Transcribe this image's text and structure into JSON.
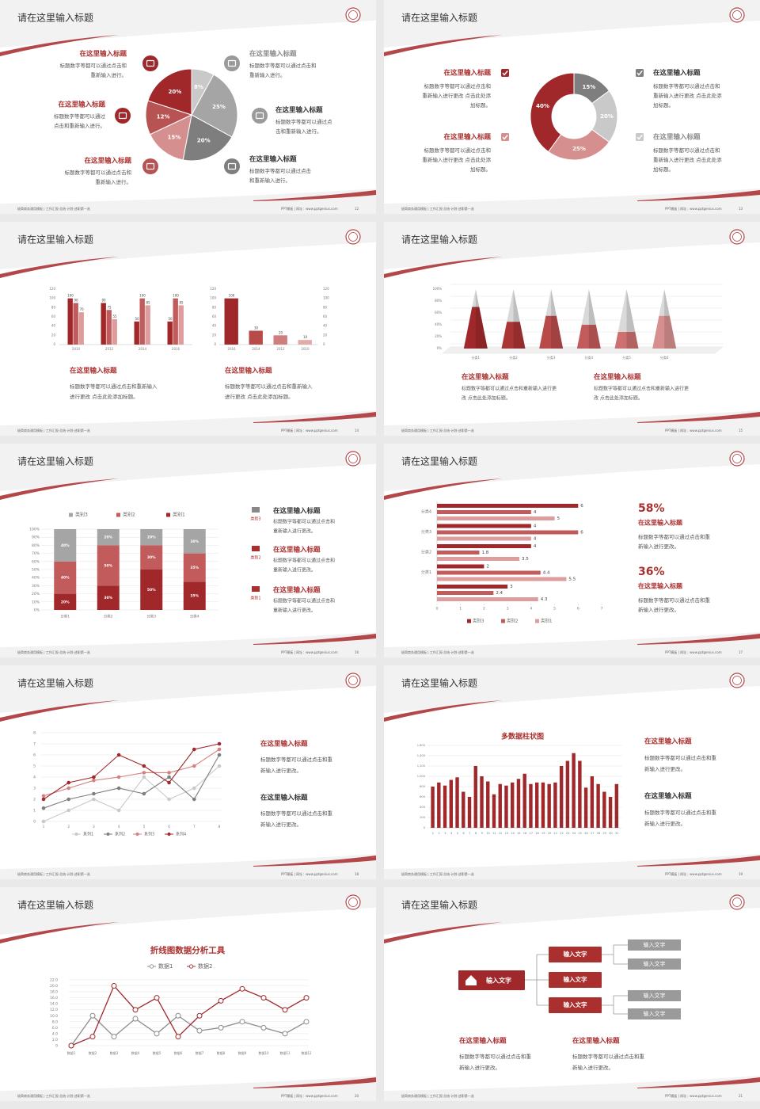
{
  "slides": [
    {
      "title": "请在这里输入标题",
      "footer_left": "极简商务通用模板 | 工作汇报·总结·计划·述职第一选",
      "footer_right": "PPT模板 | 网址：www.pptgenius.com",
      "page": 12,
      "chart": {
        "type": "pie",
        "values": [
          8,
          25,
          20,
          15,
          12,
          20
        ],
        "value_labels": [
          "8%",
          "25%",
          "20%",
          "15%",
          "12%",
          "20%"
        ],
        "colors": [
          "#c9c9c9",
          "#a5a5a5",
          "#7e7e7e",
          "#d68f8f",
          "#b85353",
          "#a0282b"
        ]
      },
      "items": [
        {
          "title": "在这里输入标题",
          "lines": [
            "标题数字等都可以通过点击和",
            "重新输入进行。"
          ]
        },
        {
          "title": "在这里输入标题",
          "lines": [
            "标题数字等都可以通过",
            "点击和重新输入进行。"
          ]
        },
        {
          "title": "在这里输入标题",
          "lines": [
            "标题数字等都可以通过点击和",
            "重新输入进行。"
          ]
        },
        {
          "title": "在这里输入标题",
          "lines": [
            "标题数字等都可以通过点击和",
            "重新输入进行。"
          ]
        },
        {
          "title": "在这里输入标题",
          "lines": [
            "标题数字等都可以通过点",
            "击和重新输入进行。"
          ]
        },
        {
          "title": "在这里输入标题",
          "lines": [
            "标题数字等都可以通过点击",
            "和重新输入进行。"
          ]
        }
      ]
    },
    {
      "title": "请在这里输入标题",
      "footer_left": "极简商务通用模板 | 工作汇报·总结·计划·述职第一选",
      "footer_right": "PPT模板 | 网址：www.pptgenius.com",
      "page": 13,
      "chart": {
        "type": "donut",
        "values": [
          15,
          20,
          25,
          40
        ],
        "value_labels": [
          "15%",
          "20%",
          "25%",
          "40%"
        ],
        "colors": [
          "#7e7e7e",
          "#c9c9c9",
          "#d68f8f",
          "#a0282b"
        ]
      },
      "items": [
        {
          "title": "在这里输入标题",
          "lines": [
            "标题数字等都可以通过点击和",
            "重新输入进行更改 点击此处添",
            "加标题。"
          ]
        },
        {
          "title": "在这里输入标题",
          "lines": [
            "标题数字等都可以通过点击和",
            "重新输入进行更改 点击此处添",
            "加标题。"
          ]
        },
        {
          "title": "在这里输入标题",
          "lines": [
            "标题数字等都可以通过点击和",
            "重新输入进行更改 点击此处添",
            "加标题。"
          ]
        },
        {
          "title": "在这里输入标题",
          "lines": [
            "标题数字等都可以通过点击和",
            "重新输入进行更改 点击此处添",
            "加标题。"
          ]
        }
      ]
    },
    {
      "title": "请在这里输入标题",
      "footer_left": "极简商务通用模板 | 工作汇报·总结·计划·述职第一选",
      "footer_right": "PPT模板 | 网址：www.pptgenius.com",
      "page": 14,
      "charts": [
        {
          "type": "bar",
          "categories": [
            "2010",
            "2012",
            "2014",
            "2016"
          ],
          "series": [
            {
              "color": "#a0282b",
              "values": [
                100,
                90,
                50,
                50
              ]
            },
            {
              "color": "#c25b5b",
              "values": [
                90,
                75,
                100,
                100
              ]
            },
            {
              "color": "#dd9d9d",
              "values": [
                70,
                55,
                85,
                85
              ]
            }
          ],
          "ylim": [
            0,
            120
          ],
          "yticks": [
            0,
            20,
            40,
            60,
            80,
            100,
            120
          ]
        },
        {
          "type": "bar",
          "categories": [
            "2016",
            "2014",
            "2012",
            "2010"
          ],
          "values": [
            100,
            30,
            20,
            10
          ],
          "colors": [
            "#a0282b",
            "#b84a4a",
            "#cf7d7d",
            "#e2aaaa"
          ],
          "ylim": [
            0,
            120
          ],
          "yticks": [
            0,
            20,
            40,
            60,
            80,
            100,
            120
          ],
          "y2lim": [
            0,
            120
          ],
          "y2ticks": [
            0,
            20,
            40,
            60,
            80,
            100,
            120
          ]
        }
      ],
      "items": [
        {
          "title": "在这里输入标题",
          "lines": [
            "标题数字等都可以通过点击和重新输入",
            "进行更改 点击此处添加标题。"
          ]
        },
        {
          "title": "在这里输入标题",
          "lines": [
            "标题数字等都可以通过点击和重新输入",
            "进行更改 点击此处添加标题。"
          ]
        }
      ]
    },
    {
      "title": "请在这里输入标题",
      "footer_left": "极简商务通用模板 | 工作汇报·总结·计划·述职第一选",
      "footer_right": "PPT模板 | 网址：www.pptgenius.com",
      "page": 15,
      "chart": {
        "type": "cone",
        "categories": [
          "分类1",
          "分类2",
          "分类3",
          "分类4",
          "分类5",
          "分类6"
        ],
        "values": [
          70,
          45,
          55,
          40,
          28,
          55
        ],
        "colors": [
          "#a0282b",
          "#a93535",
          "#b84a4a",
          "#c25b5b",
          "#cc7070",
          "#d68f8f"
        ],
        "top_color": "#d9d9d9",
        "ylim": [
          0,
          100
        ],
        "yticks": [
          {
            "value": 0,
            "label": "0%"
          },
          {
            "value": 20,
            "label": "20%"
          },
          {
            "value": 40,
            "label": "40%"
          },
          {
            "value": 60,
            "label": "60%"
          },
          {
            "value": 80,
            "label": "80%"
          },
          {
            "value": 100,
            "label": "100%"
          }
        ]
      },
      "items": [
        {
          "title": "在这里输入标题",
          "lines": [
            "标题数字等都可以通过点击和重新输入进行更",
            "改 点击此处添加标题。"
          ]
        },
        {
          "title": "在这里输入标题",
          "lines": [
            "标题数字等都可以通过点击和重新输入进行更",
            "改 点击此处添加标题。"
          ]
        }
      ]
    },
    {
      "title": "请在这里输入标题",
      "footer_left": "极简商务通用模板 | 工作汇报·总结·计划·述职第一选",
      "footer_right": "PPT模板 | 网址：www.pptgenius.com",
      "page": 16,
      "chart": {
        "type": "stacked",
        "categories": [
          "分类1",
          "分类2",
          "分类3",
          "分类4"
        ],
        "series": [
          {
            "name": "类别1",
            "color": "#a0282b",
            "values": [
              20,
              30,
              50,
              35
            ],
            "value_labels": [
              "20%",
              "30%",
              "50%",
              "35%"
            ]
          },
          {
            "name": "类别2",
            "color": "#c25b5b",
            "values": [
              40,
              50,
              30,
              35
            ],
            "value_labels": [
              "40%",
              "50%",
              "30%",
              "35%"
            ]
          },
          {
            "name": "类别3",
            "color": "#a5a5a5",
            "values": [
              40,
              20,
              20,
              30
            ],
            "value_labels": [
              "40%",
              "20%",
              "20%",
              "30%"
            ]
          }
        ],
        "ylim": [
          0,
          100
        ],
        "yticks": [
          {
            "value": 0,
            "label": "0%"
          },
          {
            "value": 10,
            "label": "10%"
          },
          {
            "value": 20,
            "label": "20%"
          },
          {
            "value": 30,
            "label": "30%"
          },
          {
            "value": 40,
            "label": "40%"
          },
          {
            "value": 50,
            "label": "50%"
          },
          {
            "value": 60,
            "label": "60%"
          },
          {
            "value": 70,
            "label": "70%"
          },
          {
            "value": 80,
            "label": "80%"
          },
          {
            "value": 90,
            "label": "90%"
          },
          {
            "value": 100,
            "label": "100%"
          }
        ],
        "grid": true
      },
      "items": [
        {
          "label": "类别3",
          "title": "在这里输入标题",
          "lines": [
            "标题数字等都可以通过点击和",
            "重新输入进行更改。"
          ]
        },
        {
          "label": "类别2",
          "title": "在这里输入标题",
          "lines": [
            "标题数字等都可以通过点击和",
            "重新输入进行更改。"
          ]
        },
        {
          "label": "类别1",
          "title": "在这里输入标题",
          "lines": [
            "标题数字等都可以通过点击和",
            "重新输入进行更改。"
          ]
        }
      ]
    },
    {
      "title": "请在这里输入标题",
      "footer_left": "极简商务通用模板 | 工作汇报·总结·计划·述职第一选",
      "footer_right": "PPT模板 | 网址：www.pptgenius.com",
      "page": 17,
      "chart": {
        "type": "hbar",
        "categories": [
          "分类4",
          "分类3",
          "分类2",
          "分类1",
          null
        ],
        "series": [
          {
            "name": "类别3",
            "color": "#a0282b",
            "values": [
              6,
              4,
              4,
              2,
              3
            ]
          },
          {
            "name": "类别2",
            "color": "#c25b5b",
            "values": [
              4,
              6,
              1.8,
              4.4,
              2.4
            ]
          },
          {
            "name": "类别1",
            "color": "#dd9d9d",
            "values": [
              5,
              4,
              3.5,
              5.5,
              4.3
            ]
          }
        ],
        "xlim": [
          0,
          7
        ],
        "xticks": [
          0,
          1,
          2,
          3,
          4,
          5,
          6,
          7
        ]
      },
      "stats": [
        {
          "figure": "58%",
          "title": "在这里输入标题",
          "lines": [
            "标题数字等都可以通过点击和重",
            "新输入进行更改。"
          ]
        },
        {
          "figure": "36%",
          "title": "在这里输入标题",
          "lines": [
            "标题数字等都可以通过点击和重",
            "新输入进行更改。"
          ]
        }
      ]
    },
    {
      "title": "请在这里输入标题",
      "footer_left": "极简商务通用模板 | 工作汇报·总结·计划·述职第一选",
      "footer_right": "PPT模板 | 网址：www.pptgenius.com",
      "page": 18,
      "chart": {
        "type": "line",
        "markers": "filled",
        "categories": [
          "1",
          "2",
          "3",
          "4",
          "5",
          "6",
          "7",
          "8"
        ],
        "series": [
          {
            "name": "系列1",
            "color": "#c9c9c9",
            "values": [
              0,
              1,
              2,
              1,
              4,
              2,
              3,
              5
            ]
          },
          {
            "name": "系列2",
            "color": "#7e7e7e",
            "values": [
              1.2,
              2,
              2.5,
              3,
              2.5,
              4,
              2,
              6
            ]
          },
          {
            "name": "系列3",
            "color": "#d68080",
            "values": [
              2.3,
              3,
              3.7,
              4,
              4.4,
              4.4,
              5,
              6.5
            ]
          },
          {
            "name": "系列4",
            "color": "#a0282b",
            "values": [
              2,
              3.5,
              4,
              6,
              5,
              3.5,
              6.5,
              7
            ]
          }
        ],
        "ylim": [
          0,
          8
        ],
        "yticks": [
          0,
          1,
          2,
          3,
          4,
          5,
          6,
          7,
          8
        ],
        "grid": true
      },
      "items": [
        {
          "title": "在这里输入标题",
          "lines": [
            "标题数字等都可以通过点击和重",
            "新输入进行更改。"
          ]
        },
        {
          "title": "在这里输入标题",
          "lines": [
            "标题数字等都可以通过点击和重",
            "新输入进行更改。"
          ]
        }
      ]
    },
    {
      "title": "请在这里输入标题",
      "footer_left": "极简商务通用模板 | 工作汇报·总结·计划·述职第一选",
      "footer_right": "PPT模板 | 网址：www.pptgenius.com",
      "page": 19,
      "chart": {
        "type": "bar",
        "title": "多数据柱状图",
        "color": "#a0282b",
        "categories": [
          "1",
          "2",
          "3",
          "4",
          "5",
          "6",
          "7",
          "8",
          "9",
          "10",
          "11",
          "12",
          "13",
          "14",
          "15",
          "16",
          "17",
          "18",
          "19",
          "20",
          "21",
          "22",
          "23",
          "24",
          "25",
          "26",
          "27",
          "28",
          "29",
          "30",
          "31"
        ],
        "values": [
          800,
          880,
          820,
          930,
          980,
          700,
          600,
          1200,
          1000,
          900,
          650,
          850,
          820,
          880,
          950,
          1050,
          850,
          880,
          880,
          850,
          880,
          1200,
          1300,
          1450,
          1300,
          780,
          1000,
          850,
          700,
          600,
          850
        ],
        "ylim": [
          0,
          1600
        ],
        "yticks": [
          0,
          200,
          400,
          600,
          800,
          {
            "value": 1000,
            "label": "1,000"
          },
          {
            "value": 1200,
            "label": "1,200"
          },
          {
            "value": 1400,
            "label": "1,400"
          },
          {
            "value": 1600,
            "label": "1,600"
          }
        ],
        "grid": true
      },
      "items": [
        {
          "title": "在这里输入标题",
          "lines": [
            "标题数字等都可以通过点击和重",
            "新输入进行更改。"
          ]
        },
        {
          "title": "在这里输入标题",
          "lines": [
            "标题数字等都可以通过点击和重",
            "新输入进行更改。"
          ]
        }
      ]
    },
    {
      "title": "请在这里输入标题",
      "footer_left": "极简商务通用模板 | 工作汇报·总结·计划·述职第一选",
      "footer_right": "PPT模板 | 网址：www.pptgenius.com",
      "page": 20,
      "chart": {
        "type": "line",
        "markers": "hollow",
        "title": "折线图数据分析工具",
        "categories": [
          "数据1",
          "数据2",
          "数据3",
          "数据4",
          "数据5",
          "数据6",
          "数据7",
          "数据8",
          "数据9",
          "数据10",
          "数据11",
          "数据12"
        ],
        "series": [
          {
            "name": "数据1",
            "color": "#8c8c8c",
            "values": [
              0,
              10,
              3,
              9,
              4,
              10,
              5,
              6,
              8,
              6,
              4,
              8
            ]
          },
          {
            "name": "数据2",
            "color": "#a0282b",
            "values": [
              0,
              3,
              20,
              12,
              16,
              3,
              10,
              15,
              19,
              16,
              12,
              16
            ]
          }
        ],
        "ylim": [
          0,
          22
        ],
        "yticks": [
          0,
          {
            "value": 2,
            "label": "2.0"
          },
          {
            "value": 4,
            "label": "4.0"
          },
          {
            "value": 6,
            "label": "6.0"
          },
          {
            "value": 8,
            "label": "8.0"
          },
          {
            "value": 10,
            "label": "10.0"
          },
          {
            "value": 12,
            "label": "12.0"
          },
          {
            "value": 14,
            "label": "14.0"
          },
          {
            "value": 16,
            "label": "16.0"
          },
          {
            "value": 18,
            "label": "18.0"
          },
          {
            "value": 20,
            "label": "20.0"
          },
          {
            "value": 22,
            "label": "22.0"
          }
        ],
        "grid": true
      }
    },
    {
      "title": "请在这里输入标题",
      "footer_left": "极简商务通用模板 | 工作汇报·总结·计划·述职第一选",
      "footer_right": "PPT模板 | 网址：www.pptgenius.com",
      "page": 21,
      "diagram": {
        "root": "输入文字",
        "children": [
          "输入文字",
          "输入文字",
          "输入文字"
        ],
        "leaves": [
          "输入文字",
          "输入文字",
          "输入文字",
          "输入文字"
        ]
      },
      "items": [
        {
          "title": "在这里输入标题",
          "lines": [
            "标题数字等都可以通过点击和重",
            "新输入进行更改。"
          ]
        },
        {
          "title": "在这里输入标题",
          "lines": [
            "标题数字等都可以通过点击和重",
            "新输入进行更改。"
          ]
        }
      ]
    }
  ]
}
